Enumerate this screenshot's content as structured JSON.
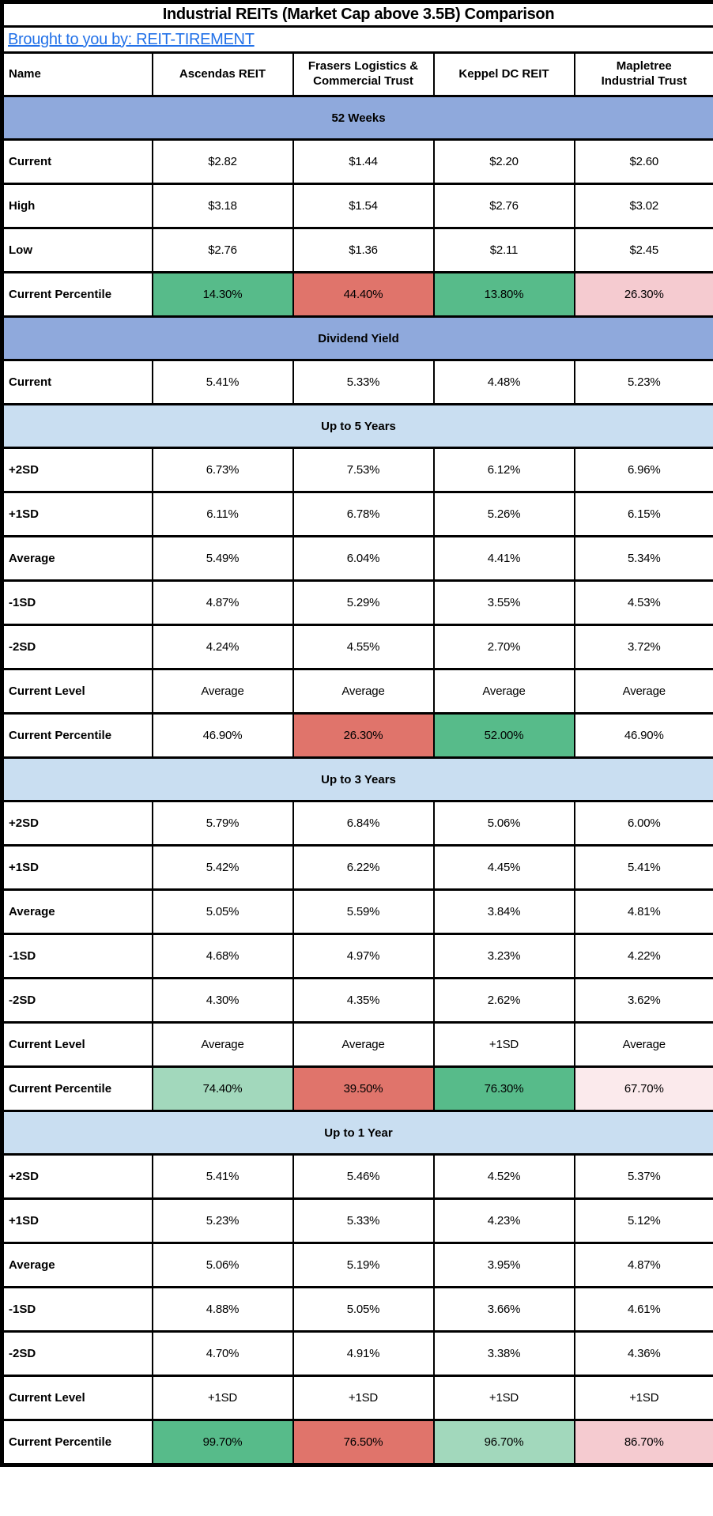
{
  "title": "Industrial REITs (Market Cap above 3.5B) Comparison",
  "byline": {
    "text": "Brought to you by: REIT-TIREMENT"
  },
  "columns": [
    "Name",
    "Ascendas REIT",
    "Frasers Logistics &\nCommercial Trust",
    "Keppel DC REIT",
    "Mapletree\nIndustrial Trust"
  ],
  "palette": {
    "green": "#57BB8A",
    "light_green": "#A2D8BC",
    "red": "#E0746B",
    "pink": "#F5CBD0",
    "pale_pink": "#FBEAEC",
    "white": "#FFFFFF",
    "section_dark": "#8FA9DC",
    "section_light": "#C9DEF1",
    "link_blue": "#2271E8",
    "border_black": "#000000"
  },
  "sections": [
    {
      "header": "52 Weeks",
      "style": "dark",
      "rows": [
        {
          "label": "Current",
          "values": [
            "$2.82",
            "$1.44",
            "$2.20",
            "$2.60"
          ]
        },
        {
          "label": "High",
          "values": [
            "$3.18",
            "$1.54",
            "$2.76",
            "$3.02"
          ]
        },
        {
          "label": "Low",
          "values": [
            "$2.76",
            "$1.36",
            "$2.11",
            "$2.45"
          ]
        },
        {
          "label": "Current Percentile",
          "values": [
            "14.30%",
            "44.40%",
            "13.80%",
            "26.30%"
          ],
          "fills": [
            "green",
            "red",
            "green",
            "pink"
          ]
        }
      ]
    },
    {
      "header": "Dividend Yield",
      "style": "dark",
      "rows": [
        {
          "label": "Current",
          "values": [
            "5.41%",
            "5.33%",
            "4.48%",
            "5.23%"
          ]
        }
      ]
    },
    {
      "header": "Up to 5 Years",
      "style": "light",
      "rows": [
        {
          "label": "+2SD",
          "values": [
            "6.73%",
            "7.53%",
            "6.12%",
            "6.96%"
          ]
        },
        {
          "label": "+1SD",
          "values": [
            "6.11%",
            "6.78%",
            "5.26%",
            "6.15%"
          ]
        },
        {
          "label": "Average",
          "values": [
            "5.49%",
            "6.04%",
            "4.41%",
            "5.34%"
          ]
        },
        {
          "label": "-1SD",
          "values": [
            "4.87%",
            "5.29%",
            "3.55%",
            "4.53%"
          ]
        },
        {
          "label": "-2SD",
          "values": [
            "4.24%",
            "4.55%",
            "2.70%",
            "3.72%"
          ]
        },
        {
          "label": "Current Level",
          "values": [
            "Average",
            "Average",
            "Average",
            "Average"
          ]
        },
        {
          "label": "Current Percentile",
          "values": [
            "46.90%",
            "26.30%",
            "52.00%",
            "46.90%"
          ],
          "fills": [
            "white",
            "red",
            "green",
            "white"
          ]
        }
      ]
    },
    {
      "header": "Up to 3 Years",
      "style": "light",
      "rows": [
        {
          "label": "+2SD",
          "values": [
            "5.79%",
            "6.84%",
            "5.06%",
            "6.00%"
          ]
        },
        {
          "label": "+1SD",
          "values": [
            "5.42%",
            "6.22%",
            "4.45%",
            "5.41%"
          ]
        },
        {
          "label": "Average",
          "values": [
            "5.05%",
            "5.59%",
            "3.84%",
            "4.81%"
          ]
        },
        {
          "label": "-1SD",
          "values": [
            "4.68%",
            "4.97%",
            "3.23%",
            "4.22%"
          ]
        },
        {
          "label": "-2SD",
          "values": [
            "4.30%",
            "4.35%",
            "2.62%",
            "3.62%"
          ]
        },
        {
          "label": "Current Level",
          "values": [
            "Average",
            "Average",
            "+1SD",
            "Average"
          ]
        },
        {
          "label": "Current Percentile",
          "values": [
            "74.40%",
            "39.50%",
            "76.30%",
            "67.70%"
          ],
          "fills": [
            "light_green",
            "red",
            "green",
            "pale_pink"
          ]
        }
      ]
    },
    {
      "header": "Up to 1 Year",
      "style": "light",
      "rows": [
        {
          "label": "+2SD",
          "values": [
            "5.41%",
            "5.46%",
            "4.52%",
            "5.37%"
          ]
        },
        {
          "label": "+1SD",
          "values": [
            "5.23%",
            "5.33%",
            "4.23%",
            "5.12%"
          ]
        },
        {
          "label": "Average",
          "values": [
            "5.06%",
            "5.19%",
            "3.95%",
            "4.87%"
          ]
        },
        {
          "label": "-1SD",
          "values": [
            "4.88%",
            "5.05%",
            "3.66%",
            "4.61%"
          ]
        },
        {
          "label": "-2SD",
          "values": [
            "4.70%",
            "4.91%",
            "3.38%",
            "4.36%"
          ]
        },
        {
          "label": "Current Level",
          "values": [
            "+1SD",
            "+1SD",
            "+1SD",
            "+1SD"
          ]
        },
        {
          "label": "Current Percentile",
          "values": [
            "99.70%",
            "76.50%",
            "96.70%",
            "86.70%"
          ],
          "fills": [
            "green",
            "red",
            "light_green",
            "pink"
          ]
        }
      ]
    }
  ]
}
